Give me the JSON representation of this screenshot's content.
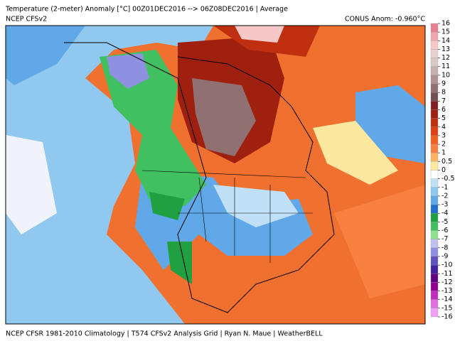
{
  "header": {
    "title": "Temperature (2-meter) Anomaly   [°C] 00Z01DEC2016 --> 06Z08DEC2016 | Average",
    "model": "NCEP  CFSv2",
    "anomaly": "CONUS Anom: -0.960°C"
  },
  "footer": "NCEP CFSR 1981-2010 Climatology | T574 CFSv2 Analysis Grid | Ryan N. Maue | WeatherBELL",
  "colorbar": {
    "ticks": [
      16,
      15,
      14,
      13,
      12,
      11,
      10,
      9,
      8,
      7,
      6,
      5,
      4,
      3,
      2,
      1,
      0.5,
      0,
      -0.5,
      -1,
      -2,
      -3,
      -4,
      -5,
      -6,
      -7,
      -8,
      -9,
      -10,
      -11,
      -12,
      -13,
      -14,
      -15,
      -16
    ],
    "colors": [
      "#e8808f",
      "#f0a8b0",
      "#f5c8c8",
      "#e8d0d0",
      "#d8c8c8",
      "#c8b0b0",
      "#b09090",
      "#907070",
      "#705050",
      "#802020",
      "#a02010",
      "#c03010",
      "#e04010",
      "#f06020",
      "#f88040",
      "#fcb060",
      "#fde8a0",
      "#ffffff",
      "#c0e0f8",
      "#90c8f0",
      "#60a8e8",
      "#2070d0",
      "#20a040",
      "#40c060",
      "#90e090",
      "#c0c0f0",
      "#9090e0",
      "#6050c0",
      "#4020a0",
      "#600080",
      "#900090",
      "#c030c0",
      "#e070e0",
      "#f0a0f0"
    ]
  }
}
